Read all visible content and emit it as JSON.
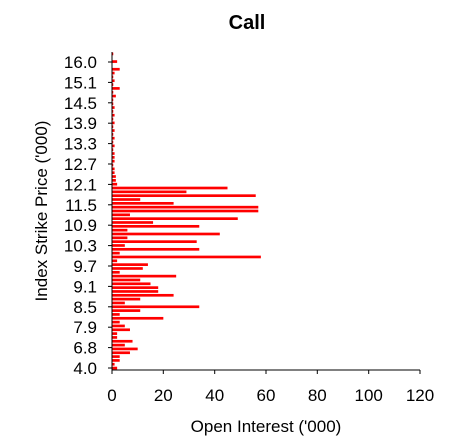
{
  "chart_data": {
    "type": "bar",
    "orientation": "horizontal",
    "title": "Call",
    "xlabel": "Open Interest ('000)",
    "ylabel": "Index Strike Price ('000)",
    "xlim": [
      0,
      120
    ],
    "x_ticks": [
      "0",
      "20",
      "40",
      "60",
      "80",
      "100",
      "120"
    ],
    "y_tick_labels": [
      "16.0",
      "15.1",
      "14.5",
      "13.9",
      "13.3",
      "12.7",
      "12.1",
      "11.5",
      "10.9",
      "10.3",
      "9.7",
      "9.1",
      "8.5",
      "7.9",
      "6.8",
      "4.0"
    ],
    "bar_color": "#ff0000",
    "grid": false,
    "legend": "none",
    "values": [
      0.5,
      0,
      2,
      0,
      3,
      1,
      0.5,
      1,
      0.5,
      3,
      0.5,
      1.5,
      0.5,
      0.5,
      1,
      0.5,
      1,
      0.5,
      1,
      0.5,
      1,
      0.5,
      1,
      0.5,
      1,
      0.5,
      1,
      1,
      1,
      0.5,
      1,
      1,
      1.5,
      1.5,
      2,
      45,
      29,
      56,
      11,
      24,
      57,
      57,
      7,
      49,
      16,
      34,
      6,
      42,
      6,
      33,
      5,
      34,
      3,
      58,
      2,
      14,
      12,
      3,
      25,
      11,
      15,
      18,
      18,
      24,
      11,
      5,
      34,
      11,
      3,
      20,
      3,
      5,
      7,
      2,
      2,
      8,
      5,
      10,
      7,
      3,
      3,
      1,
      2
    ]
  }
}
